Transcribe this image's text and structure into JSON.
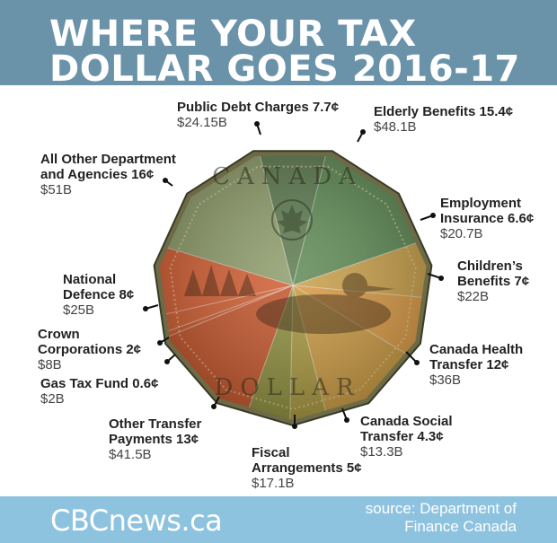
{
  "header": {
    "title_line1": "WHERE YOUR TAX",
    "title_line2": "DOLLAR GOES 2016-17"
  },
  "coin": {
    "top_text": "CANADA",
    "bottom_text": "DOLLAR"
  },
  "footer": {
    "brand": "CBCnews.ca",
    "source_line1": "source: Department of",
    "source_line2": "Finance Canada"
  },
  "chart_data": {
    "type": "pie",
    "title": "WHERE YOUR TAX DOLLAR GOES 2016-17",
    "unit": "¢",
    "slices": [
      {
        "name": "Public Debt Charges 7.7¢",
        "value": 7.7,
        "amount": "$24.15B",
        "color": "#5d7a4f"
      },
      {
        "name": "Elderly Benefits 15.4¢",
        "value": 15.4,
        "amount": "$48.1B",
        "color": "#5f8a55"
      },
      {
        "name": "Employment Insurance 6.6¢",
        "value": 6.6,
        "amount": "$20.7B",
        "color": "#c9a04a"
      },
      {
        "name": "Children's Benefits 7¢",
        "value": 7,
        "amount": "$22B",
        "color": "#d99a45"
      },
      {
        "name": "Canada Health Transfer 12¢",
        "value": 12,
        "amount": "$36B",
        "color": "#c99a43"
      },
      {
        "name": "Canada Social Transfer 4.3¢",
        "value": 4.3,
        "amount": "$13.3B",
        "color": "#a7973f"
      },
      {
        "name": "Fiscal Arrangements 5¢",
        "value": 5,
        "amount": "$17.1B",
        "color": "#8d8e3d"
      },
      {
        "name": "Other Transfer Payments 13¢",
        "value": 13,
        "amount": "$41.5B",
        "color": "#c4562c"
      },
      {
        "name": "Gas Tax Fund 0.6¢",
        "value": 0.6,
        "amount": "$2B",
        "color": "#cc5b2f"
      },
      {
        "name": "Crown Corporations 2¢",
        "value": 2,
        "amount": "$8B",
        "color": "#d05e31"
      },
      {
        "name": "National Defence 8¢",
        "value": 8,
        "amount": "$25B",
        "color": "#d35e33"
      },
      {
        "name": "All Other Department and Agencies 16¢",
        "value": 16,
        "amount": "$51B",
        "color": "#8e9c6a"
      }
    ]
  },
  "labels": {
    "public_debt": {
      "name": "Public Debt Charges 7.7¢",
      "amount": "$24.15B"
    },
    "elderly": {
      "name": "Elderly Benefits 15.4¢",
      "amount": "$48.1B"
    },
    "employment_1": "Employment",
    "employment_2": "Insurance 6.6¢",
    "employment_amt": "$20.7B",
    "children_1": "Children’s",
    "children_2": "Benefits 7¢",
    "children_amt": "$22B",
    "health_1": "Canada Health",
    "health_2": "Transfer 12¢",
    "health_amt": "$36B",
    "social_1": "Canada Social",
    "social_2": "Transfer 4.3¢",
    "social_amt": "$13.3B",
    "fiscal_1": "Fiscal",
    "fiscal_2": "Arrangements 5¢",
    "fiscal_amt": "$17.1B",
    "other_transfer_1": "Other Transfer",
    "other_transfer_2": "Payments 13¢",
    "other_transfer_amt": "$41.5B",
    "gas_tax": {
      "name": "Gas Tax Fund 0.6¢",
      "amount": "$2B"
    },
    "crown_1": "Crown",
    "crown_2": "Corporations 2¢",
    "crown_amt": "$8B",
    "defence_1": "National",
    "defence_2": "Defence 8¢",
    "defence_amt": "$25B",
    "all_other_1": "All Other Department",
    "all_other_2": "and Agencies 16¢",
    "all_other_amt": "$51B"
  }
}
